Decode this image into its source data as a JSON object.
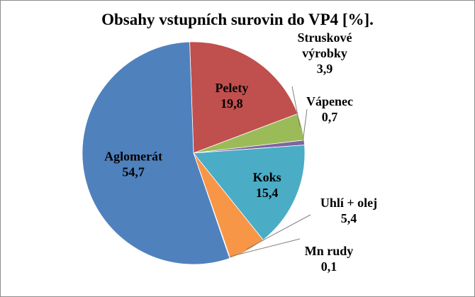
{
  "chart_data": {
    "type": "pie",
    "title": "Obsahy vstupních surovin do VP4 [%].",
    "slices": [
      {
        "label": "Pelety",
        "value": 19.8,
        "value_text": "19,8",
        "color": "#C0504D"
      },
      {
        "label": "Struskové výrobky",
        "label_lines": [
          "Struskové",
          "výrobky"
        ],
        "value": 3.9,
        "value_text": "3,9",
        "color": "#9BBB59"
      },
      {
        "label": "Vápenec",
        "value": 0.7,
        "value_text": "0,7",
        "color": "#8064A2"
      },
      {
        "label": "Koks",
        "value": 15.4,
        "value_text": "15,4",
        "color": "#4BACC6"
      },
      {
        "label": "Uhlí + olej",
        "value": 5.4,
        "value_text": "5,4",
        "color": "#F79646"
      },
      {
        "label": "Mn rudy",
        "value": 0.1,
        "value_text": "0,1",
        "color": "#2C4D75"
      },
      {
        "label": "Aglomerát",
        "value": 54.7,
        "value_text": "54,7",
        "color": "#4F81BD"
      }
    ],
    "legend": "none",
    "data_labels": "category and value"
  }
}
